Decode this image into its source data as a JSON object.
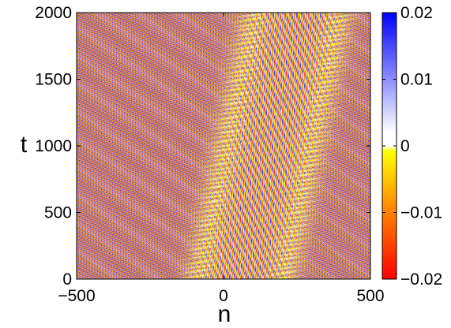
{
  "chart_data": {
    "type": "heatmap",
    "title": "",
    "xlabel": "n",
    "ylabel": "t",
    "xlim": [
      -500,
      500
    ],
    "ylim": [
      0,
      2000
    ],
    "x_ticks": [
      "−500",
      "0",
      "500"
    ],
    "x_tick_values": [
      -500,
      0,
      500
    ],
    "y_ticks": [
      "0",
      "500",
      "1000",
      "1500",
      "2000"
    ],
    "y_tick_values": [
      0,
      500,
      1000,
      1500,
      2000
    ],
    "colorbar": {
      "range": [
        -0.02,
        0.02
      ],
      "tick_values": [
        -0.02,
        -0.01,
        0,
        0.01,
        0.02
      ],
      "tick_labels": [
        "−0.02",
        "−0.01",
        "0",
        "0.01",
        "0.02"
      ],
      "colors_low_to_high": [
        "#ff0000",
        "#ff8000",
        "#ffff00",
        "#ffffff",
        "#0000ff"
      ]
    },
    "field": {
      "description_values": "oscillating field with amplitude about 0.02, striped diagonally; bands drift toward larger n as t increases",
      "amplitude": 0.02,
      "band_center_n_at_t0": 60,
      "band_center_n_at_t2000": 250,
      "band_half_width_n": 170,
      "background_stripe_slope_dn_dt": 0.5,
      "band_stripe_slope_dn_dt": 0.1
    }
  }
}
